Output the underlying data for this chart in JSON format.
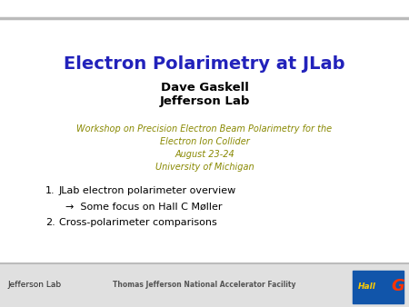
{
  "title": "Electron Polarimetry at JLab",
  "subtitle1": "Dave Gaskell",
  "subtitle2": "Jefferson Lab",
  "workshop_lines": [
    "Workshop on Precision Electron Beam Polarimetry for the",
    "Electron Ion Collider",
    "August 23-24",
    "University of Michigan"
  ],
  "bullet1": "JLab electron polarimeter overview",
  "bullet1_sub": "→  Some focus on Hall C Møller",
  "bullet2": "Cross-polarimeter comparisons",
  "footer_center": "Thomas Jefferson National Accelerator Facility",
  "footer_left": "Jefferson Lab",
  "title_color": "#2222bb",
  "subtitle_color": "#000000",
  "workshop_color": "#888800",
  "bullet_color": "#000000",
  "bg_color": "#ffffff",
  "header_bar_color": "#bbbbbb",
  "footer_bar_color": "#bbbbbb",
  "footer_bg_color": "#e0e0e0"
}
